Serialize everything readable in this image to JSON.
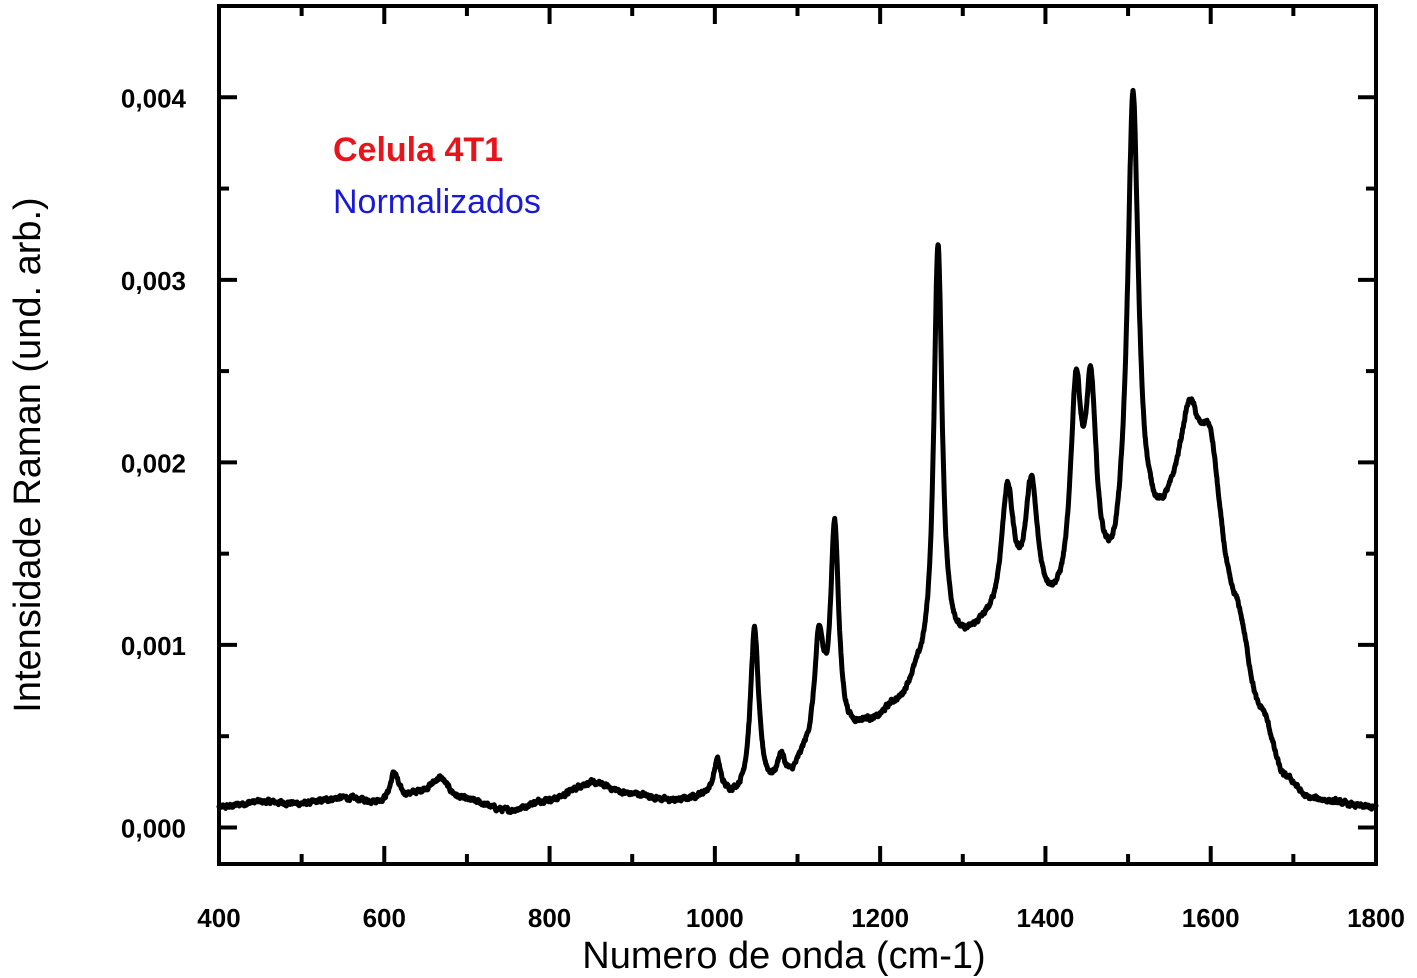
{
  "chart_data": {
    "type": "line",
    "title": "",
    "xlabel": "Numero de onda (cm-1)",
    "ylabel": "Intensidade Raman (und. arb.)",
    "xlim": [
      400,
      1800
    ],
    "ylim": [
      -0.0002,
      0.0045
    ],
    "grid": false,
    "x_ticks": [
      400,
      600,
      800,
      1000,
      1200,
      1400,
      1600,
      1800
    ],
    "x_tick_labels": [
      "400",
      "600",
      "800",
      "1000",
      "1200",
      "1400",
      "1600",
      "1800"
    ],
    "y_ticks": [
      0.0,
      0.001,
      0.002,
      0.003,
      0.004
    ],
    "y_tick_labels": [
      "0,000",
      "0,001",
      "0,002",
      "0,003",
      "0,004"
    ],
    "annotations": [
      {
        "text": "Celula 4T1",
        "color": "#e8141c",
        "bold": true
      },
      {
        "text": "Normalizados",
        "color": "#1a1ad6",
        "bold": false
      }
    ],
    "series": [
      {
        "color": "#000000",
        "noise": 2.5e-05,
        "baseline": [
          [
            400,
            0.00011
          ],
          [
            450,
            0.00014
          ],
          [
            500,
            0.00013
          ],
          [
            550,
            0.00016
          ],
          [
            600,
            0.00013
          ],
          [
            650,
            0.00018
          ],
          [
            700,
            0.00014
          ],
          [
            750,
            9e-05
          ],
          [
            800,
            0.00015
          ],
          [
            850,
            0.00024
          ],
          [
            900,
            0.00018
          ],
          [
            950,
            0.00014
          ],
          [
            1000,
            0.00017
          ],
          [
            1030,
            0.00015
          ],
          [
            1060,
            0.00018
          ],
          [
            1090,
            0.00024
          ],
          [
            1110,
            0.00034
          ],
          [
            1150,
            0.00045
          ],
          [
            1190,
            0.00055
          ],
          [
            1220,
            0.00065
          ],
          [
            1250,
            0.0008
          ],
          [
            1290,
            0.00095
          ],
          [
            1330,
            0.00105
          ],
          [
            1370,
            0.0011
          ],
          [
            1410,
            0.0011
          ],
          [
            1450,
            0.00115
          ],
          [
            1480,
            0.0012
          ],
          [
            1500,
            0.00135
          ],
          [
            1530,
            0.0015
          ],
          [
            1560,
            0.0016
          ],
          [
            1590,
            0.0015
          ],
          [
            1630,
            0.0011
          ],
          [
            1660,
            0.0006
          ],
          [
            1690,
            0.00025
          ],
          [
            1720,
            0.00014
          ],
          [
            1800,
            0.0001
          ]
        ],
        "peaks": [
          {
            "x": 612,
            "height": 0.00016,
            "width": 6
          },
          {
            "x": 668,
            "height": 0.0001,
            "width": 12
          },
          {
            "x": 1003,
            "height": 0.00018,
            "width": 5
          },
          {
            "x": 1048,
            "height": 0.0009,
            "width": 6
          },
          {
            "x": 1080,
            "height": 0.00013,
            "width": 5
          },
          {
            "x": 1126,
            "height": 0.0006,
            "width": 7
          },
          {
            "x": 1145,
            "height": 0.00115,
            "width": 6
          },
          {
            "x": 1270,
            "height": 0.0023,
            "width": 6
          },
          {
            "x": 1354,
            "height": 0.0007,
            "width": 9
          },
          {
            "x": 1383,
            "height": 0.0007,
            "width": 9
          },
          {
            "x": 1437,
            "height": 0.00112,
            "width": 8
          },
          {
            "x": 1455,
            "height": 0.00108,
            "width": 8
          },
          {
            "x": 1506,
            "height": 0.00257,
            "width": 8
          },
          {
            "x": 1575,
            "height": 0.0006,
            "width": 15
          },
          {
            "x": 1600,
            "height": 0.00055,
            "width": 15
          }
        ]
      }
    ]
  }
}
